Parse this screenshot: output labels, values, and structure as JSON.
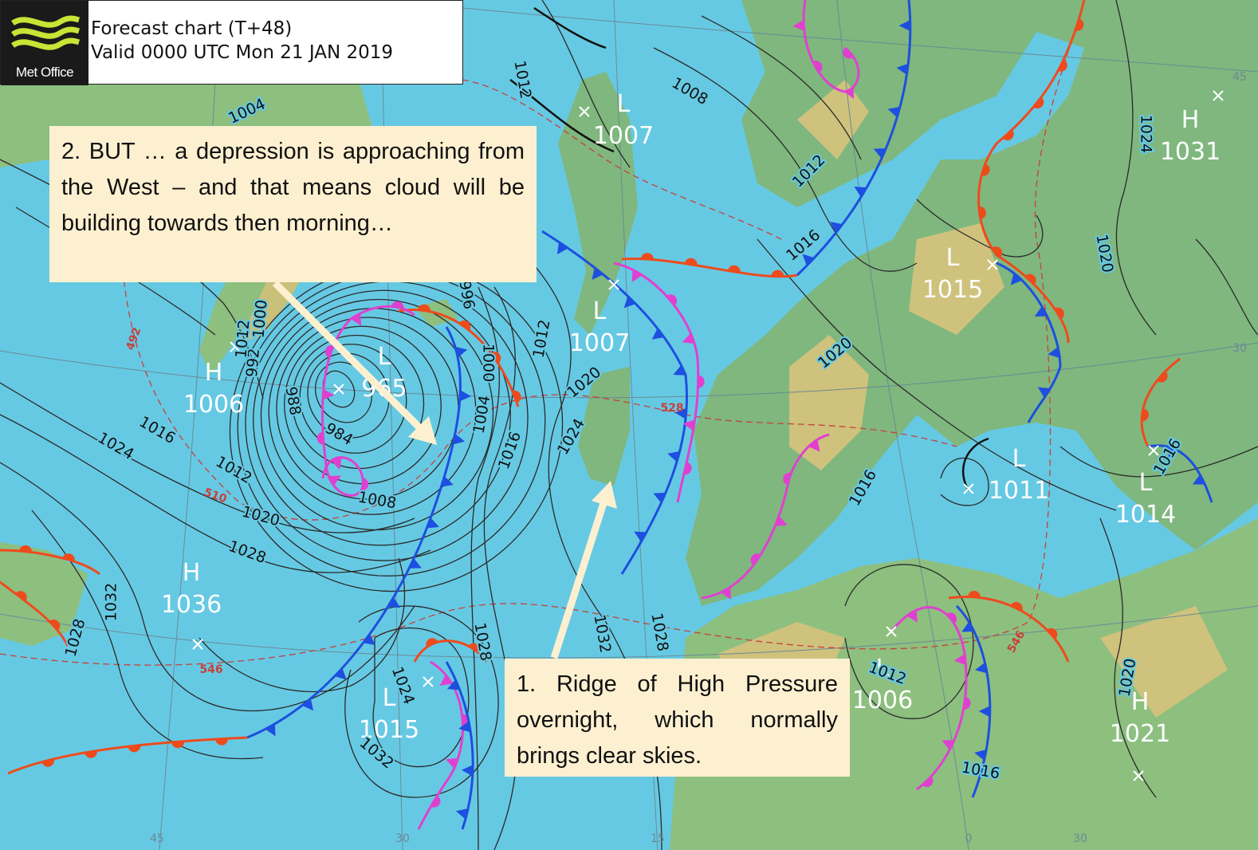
{
  "header": {
    "logo_text": "Met Office",
    "title": "Forecast chart (T+48)",
    "subtitle": "Valid 0000 UTC Mon 21 JAN 2019"
  },
  "callouts": [
    {
      "text": "2. BUT … a depression is approaching from the West – and that means cloud will be building towards then morning…"
    },
    {
      "text": "1. Ridge of High Pressure overnight, which normally brings clear skies."
    }
  ],
  "pressure_centres": [
    {
      "type": "L",
      "value": 1007
    },
    {
      "type": "H",
      "value": 1031
    },
    {
      "type": "L",
      "value": 1015
    },
    {
      "type": "L",
      "value": 1007
    },
    {
      "type": "L",
      "value": 965
    },
    {
      "type": "H",
      "value": 1006
    },
    {
      "type": "L",
      "value": 1011
    },
    {
      "type": "L",
      "value": 1014
    },
    {
      "type": "H",
      "value": 1036
    },
    {
      "type": "L",
      "value": 1015
    },
    {
      "type": "L",
      "value": 1006
    },
    {
      "type": "H",
      "value": 1021
    }
  ],
  "isobar_labels": [
    "1004",
    "1008",
    "1012",
    "1012",
    "1016",
    "1020",
    "1016",
    "1024",
    "1020",
    "1016",
    "1012",
    "1020",
    "1024",
    "1016",
    "1004",
    "1000",
    "996",
    "988",
    "984",
    "1008",
    "1016",
    "1024",
    "1012",
    "1020",
    "1028",
    "1032",
    "1028",
    "1032",
    "1028",
    "1028",
    "1024",
    "1032",
    "1012",
    "1020",
    "1016",
    "1000",
    "992",
    "1012"
  ],
  "thickness_labels": [
    "492",
    "510",
    "546",
    "528",
    "546"
  ],
  "grid_labels": [
    "45",
    "30",
    "15",
    "0",
    "30",
    "45",
    "30"
  ]
}
